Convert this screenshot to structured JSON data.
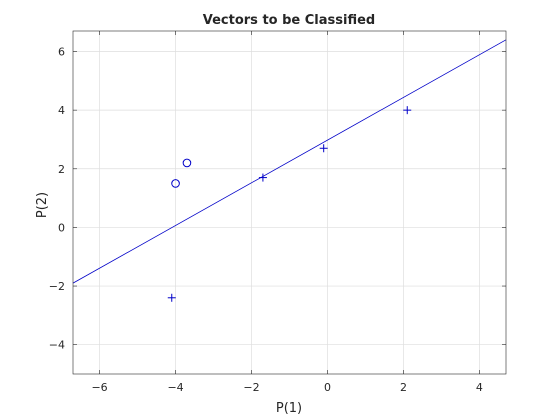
{
  "chart_data": {
    "type": "scatter",
    "title": "Vectors to be Classified",
    "xlabel": "P(1)",
    "ylabel": "P(2)",
    "xlim": [
      -6.7,
      4.7
    ],
    "ylim": [
      -5,
      6.7
    ],
    "xticks": [
      -6,
      -4,
      -2,
      0,
      2,
      4
    ],
    "yticks": [
      -4,
      -2,
      0,
      2,
      4,
      6
    ],
    "grid": true,
    "color": "#0000c8",
    "series": [
      {
        "marker": "plus",
        "points": [
          [
            -4.1,
            -2.4
          ],
          [
            -1.7,
            1.7
          ],
          [
            -0.1,
            2.7
          ],
          [
            2.1,
            4.0
          ]
        ]
      },
      {
        "marker": "circle",
        "points": [
          [
            -4.0,
            1.5
          ],
          [
            -3.7,
            2.2
          ]
        ]
      }
    ],
    "boundary_line": {
      "x": [
        -6.7,
        4.7
      ],
      "y": [
        -1.9,
        6.4
      ]
    }
  }
}
